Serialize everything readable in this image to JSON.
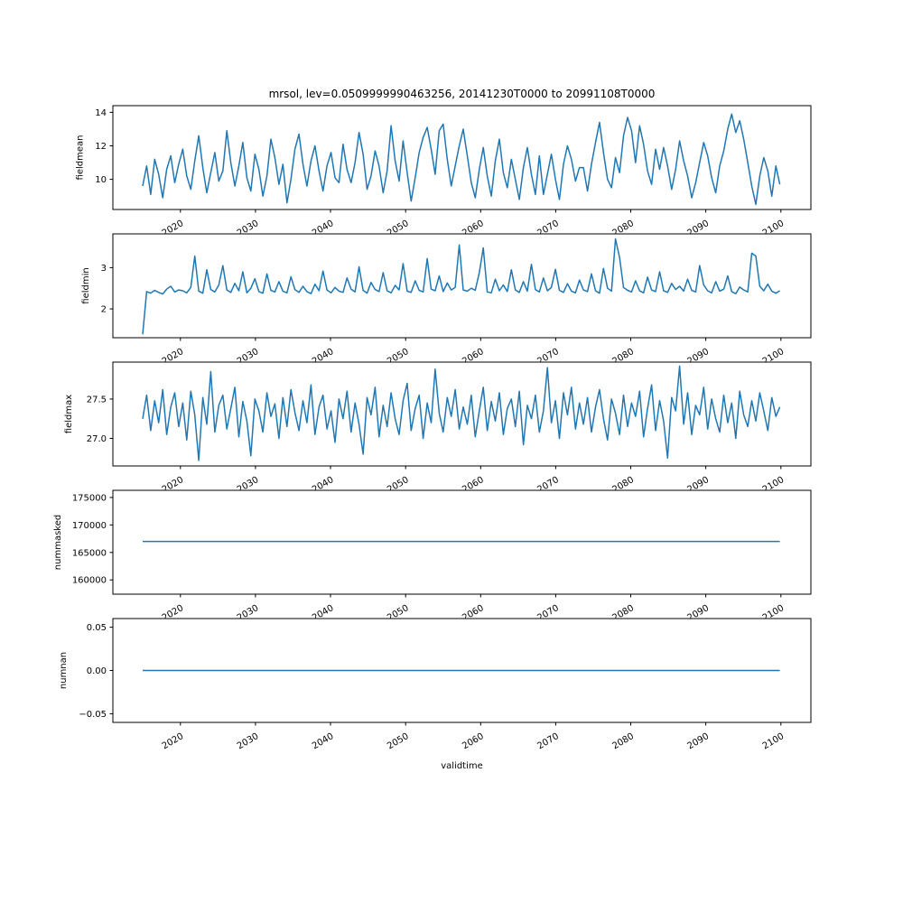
{
  "chart_data": {
    "type": "line",
    "title": "mrsol, lev=0.0509999990463256, 20141230T0000 to 20991108T0000",
    "xlabel": "validtime",
    "line_color": "#1f77b4",
    "xlim": [
      2011,
      2104
    ],
    "x_ticks": [
      2020,
      2030,
      2040,
      2050,
      2060,
      2070,
      2080,
      2090,
      2100
    ],
    "x_tick_labels": [
      "2020",
      "2030",
      "2040",
      "2050",
      "2060",
      "2070",
      "2080",
      "2090",
      "2100"
    ],
    "grid": false,
    "legend": "none",
    "subplots": [
      {
        "ylabel": "fieldmean",
        "ylim": [
          8.2,
          14.4
        ],
        "ytick_values": [
          10,
          12,
          14
        ],
        "ytick_labels": [
          "10",
          "12",
          "14"
        ],
        "x_start": 2014.97,
        "x_end": 2099.86,
        "values": [
          9.6,
          10.8,
          9.1,
          11.2,
          10.3,
          8.9,
          10.6,
          11.4,
          9.8,
          10.9,
          11.8,
          10.2,
          9.4,
          11.1,
          12.6,
          10.7,
          9.2,
          10.4,
          11.6,
          9.9,
          10.5,
          12.9,
          11.0,
          9.6,
          10.8,
          12.2,
          10.1,
          9.3,
          11.5,
          10.6,
          9.0,
          10.2,
          12.4,
          11.3,
          9.7,
          10.9,
          8.6,
          10.0,
          11.8,
          12.7,
          10.9,
          9.6,
          11.1,
          12.0,
          10.5,
          9.3,
          10.8,
          11.6,
          10.1,
          9.8,
          12.1,
          10.6,
          9.8,
          11.0,
          12.8,
          11.5,
          9.4,
          10.2,
          11.7,
          10.8,
          9.2,
          10.5,
          13.2,
          11.1,
          9.9,
          12.3,
          10.4,
          8.7,
          10.1,
          11.6,
          12.5,
          13.1,
          11.8,
          10.3,
          12.9,
          13.3,
          11.2,
          9.6,
          10.8,
          12.0,
          13.0,
          11.4,
          9.8,
          8.9,
          10.6,
          11.9,
          10.2,
          9.0,
          11.1,
          12.4,
          10.4,
          9.5,
          11.2,
          10.0,
          8.8,
          10.7,
          11.9,
          10.3,
          9.1,
          11.4,
          9.1,
          10.3,
          11.5,
          10.0,
          8.8,
          10.9,
          12.0,
          11.2,
          9.9,
          10.7,
          10.7,
          9.3,
          10.9,
          12.2,
          13.4,
          11.6,
          10.0,
          9.5,
          11.3,
          10.4,
          12.6,
          13.7,
          12.9,
          11.0,
          13.2,
          12.1,
          10.5,
          9.7,
          11.8,
          10.6,
          11.9,
          10.8,
          9.4,
          10.6,
          12.3,
          11.1,
          10.2,
          8.9,
          9.8,
          11.0,
          12.2,
          11.4,
          10.1,
          9.2,
          10.8,
          11.7,
          13.0,
          13.9,
          12.8,
          13.5,
          12.4,
          11.0,
          9.6,
          8.5,
          10.2,
          11.3,
          10.5,
          9.0,
          10.8,
          9.7
        ]
      },
      {
        "ylabel": "fieldmin",
        "ylim": [
          1.3,
          3.82
        ],
        "ytick_values": [
          2,
          3
        ],
        "ytick_labels": [
          "2",
          "3"
        ],
        "x_start": 2014.97,
        "x_end": 2099.86,
        "values": [
          1.38,
          2.42,
          2.38,
          2.45,
          2.4,
          2.36,
          2.48,
          2.55,
          2.41,
          2.46,
          2.44,
          2.39,
          2.52,
          3.28,
          2.43,
          2.38,
          2.95,
          2.47,
          2.41,
          2.58,
          3.05,
          2.46,
          2.4,
          2.62,
          2.44,
          2.9,
          2.39,
          2.5,
          2.73,
          2.42,
          2.38,
          2.85,
          2.45,
          2.41,
          2.66,
          2.43,
          2.39,
          2.78,
          2.47,
          2.4,
          2.55,
          2.42,
          2.37,
          2.6,
          2.44,
          2.92,
          2.46,
          2.39,
          2.52,
          2.43,
          2.4,
          2.75,
          2.48,
          2.41,
          3.02,
          2.45,
          2.38,
          2.64,
          2.47,
          2.42,
          2.88,
          2.44,
          2.39,
          2.57,
          2.46,
          3.1,
          2.43,
          2.4,
          2.68,
          2.45,
          2.41,
          3.22,
          2.48,
          2.44,
          2.8,
          2.42,
          2.63,
          2.46,
          2.52,
          3.55,
          2.46,
          2.43,
          2.5,
          2.45,
          2.88,
          3.48,
          2.41,
          2.39,
          2.72,
          2.44,
          2.58,
          2.42,
          2.95,
          2.46,
          2.4,
          2.66,
          2.43,
          3.08,
          2.47,
          2.41,
          2.75,
          2.44,
          2.52,
          2.96,
          2.45,
          2.4,
          2.61,
          2.43,
          2.39,
          2.7,
          2.46,
          2.42,
          2.85,
          2.44,
          2.38,
          2.98,
          2.5,
          2.43,
          3.7,
          3.25,
          2.52,
          2.45,
          2.41,
          2.68,
          2.44,
          2.39,
          2.77,
          2.46,
          2.42,
          2.9,
          2.44,
          2.4,
          2.62,
          2.47,
          2.55,
          2.43,
          2.72,
          2.45,
          2.41,
          3.05,
          2.58,
          2.44,
          2.39,
          2.66,
          2.43,
          2.48,
          2.8,
          2.42,
          2.37,
          2.53,
          2.46,
          2.41,
          3.35,
          3.28,
          2.55,
          2.44,
          2.6,
          2.43,
          2.38,
          2.44
        ]
      },
      {
        "ylabel": "fieldmax",
        "ylim": [
          26.65,
          27.97
        ],
        "ytick_values": [
          27.0,
          27.5
        ],
        "ytick_labels": [
          "27.0",
          "27.5"
        ],
        "x_start": 2014.97,
        "x_end": 2099.86,
        "values": [
          27.25,
          27.55,
          27.1,
          27.48,
          27.2,
          27.62,
          27.05,
          27.4,
          27.58,
          27.15,
          27.45,
          26.98,
          27.6,
          27.3,
          26.72,
          27.52,
          27.18,
          27.85,
          27.08,
          27.42,
          27.55,
          27.12,
          27.38,
          27.65,
          27.02,
          27.47,
          27.22,
          26.78,
          27.5,
          27.35,
          27.08,
          27.58,
          27.28,
          27.44,
          27.0,
          27.52,
          27.15,
          27.62,
          27.33,
          27.1,
          27.48,
          27.2,
          27.68,
          27.05,
          27.4,
          27.55,
          27.12,
          27.35,
          26.95,
          27.5,
          27.25,
          27.6,
          27.08,
          27.45,
          27.18,
          26.8,
          27.52,
          27.3,
          27.65,
          27.02,
          27.42,
          27.15,
          27.58,
          27.25,
          27.05,
          27.48,
          27.7,
          27.1,
          27.38,
          27.55,
          27.0,
          27.45,
          27.2,
          27.88,
          27.32,
          27.08,
          27.52,
          27.28,
          27.62,
          27.12,
          27.4,
          27.18,
          27.55,
          27.02,
          27.35,
          27.65,
          27.1,
          27.47,
          27.22,
          27.58,
          27.05,
          27.38,
          27.5,
          27.15,
          27.6,
          26.92,
          27.42,
          27.25,
          27.55,
          27.08,
          27.35,
          27.9,
          27.2,
          27.48,
          27.0,
          27.58,
          27.3,
          27.65,
          27.12,
          27.45,
          27.18,
          27.52,
          27.08,
          27.4,
          27.62,
          27.25,
          26.98,
          27.5,
          27.32,
          27.05,
          27.55,
          27.15,
          27.45,
          27.28,
          27.6,
          27.02,
          27.38,
          27.68,
          27.1,
          27.48,
          27.22,
          26.75,
          27.52,
          27.35,
          27.92,
          27.18,
          27.58,
          27.05,
          27.42,
          27.3,
          27.65,
          27.12,
          27.5,
          27.25,
          27.08,
          27.55,
          27.2,
          27.45,
          27.0,
          27.6,
          27.3,
          27.15,
          27.48,
          27.22,
          27.58,
          27.35,
          27.1,
          27.52,
          27.28,
          27.4
        ]
      },
      {
        "ylabel": "nummasked",
        "ylim": [
          157400,
          176300
        ],
        "ytick_values": [
          160000,
          165000,
          170000,
          175000
        ],
        "ytick_labels": [
          "160000",
          "165000",
          "170000",
          "175000"
        ],
        "x_start": 2014.97,
        "x_end": 2099.86,
        "constant": 167000
      },
      {
        "ylabel": "numnan",
        "ylim": [
          -0.06,
          0.06
        ],
        "ytick_values": [
          -0.05,
          0.0,
          0.05
        ],
        "ytick_labels": [
          "−0.05",
          "0.00",
          "0.05"
        ],
        "x_start": 2014.97,
        "x_end": 2099.86,
        "constant": 0
      }
    ]
  }
}
